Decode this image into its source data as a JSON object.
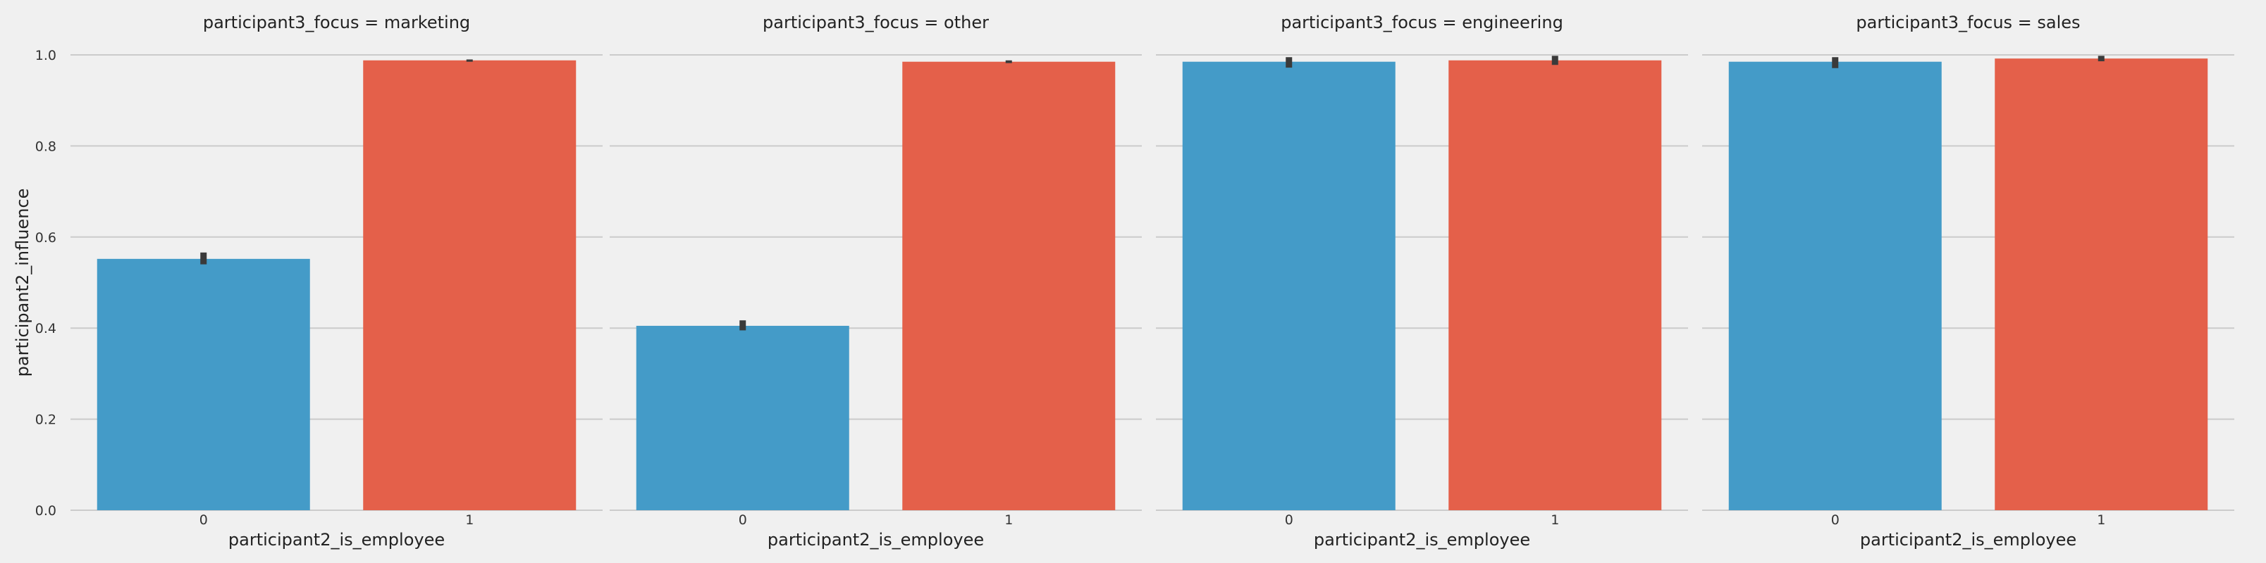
{
  "colors": {
    "background": "#f0f0f0",
    "grid": "#cbcbcb",
    "error_bar": "#3a3a3a",
    "series_0": "#449bc8",
    "series_1": "#e4604a"
  },
  "chart_data": {
    "type": "bar",
    "layout": "faceted",
    "ylabel": "participant2_influence",
    "xlabel": "participant2_is_employee",
    "ylim": [
      0,
      1.0
    ],
    "yticks": [
      "0.0",
      "0.2",
      "0.4",
      "0.6",
      "0.8",
      "1.0"
    ],
    "categories": [
      "0",
      "1"
    ],
    "grid": true,
    "facets": [
      {
        "title": "participant3_focus = marketing",
        "values": [
          0.552,
          0.988
        ],
        "error_low": [
          0.54,
          0.985
        ],
        "error_high": [
          0.566,
          0.99
        ]
      },
      {
        "title": "participant3_focus = other",
        "values": [
          0.405,
          0.985
        ],
        "error_low": [
          0.395,
          0.982
        ],
        "error_high": [
          0.417,
          0.988
        ]
      },
      {
        "title": "participant3_focus = engineering",
        "values": [
          0.985,
          0.988
        ],
        "error_low": [
          0.972,
          0.978
        ],
        "error_high": [
          0.995,
          0.998
        ]
      },
      {
        "title": "participant3_focus = sales",
        "values": [
          0.985,
          0.992
        ],
        "error_low": [
          0.971,
          0.986
        ],
        "error_high": [
          0.995,
          0.998
        ]
      }
    ]
  }
}
